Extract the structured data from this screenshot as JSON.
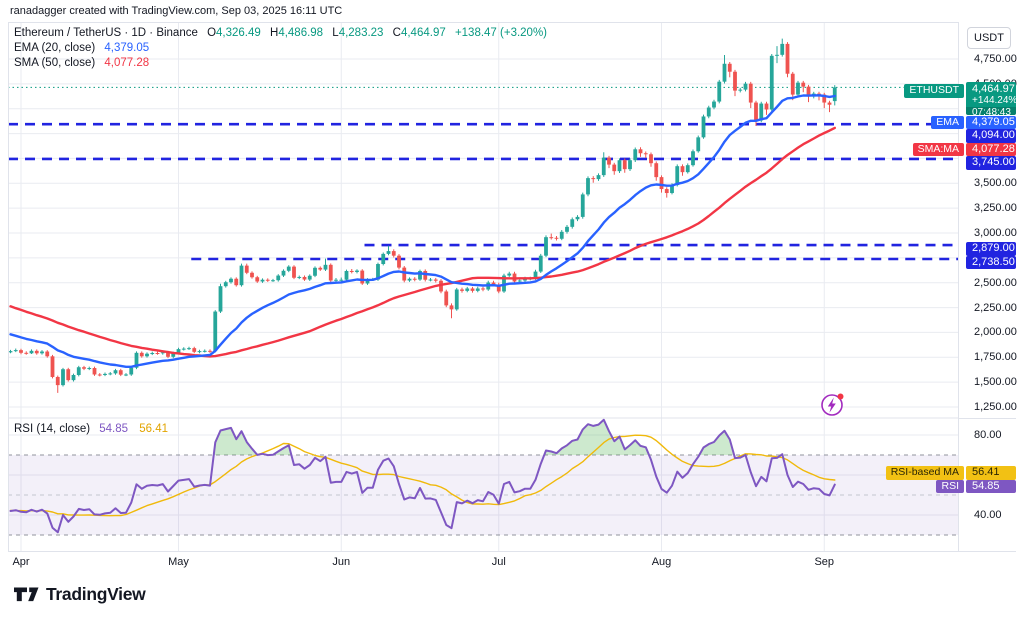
{
  "header": {
    "note": "ranadagger created with TradingView.com, Sep 03, 2025 16:11 UTC"
  },
  "legend": {
    "symbol_line": "Ethereum / TetherUS · 1D · Binance",
    "open": {
      "k": "O",
      "v": "4,326.49"
    },
    "high": {
      "k": "H",
      "v": "4,486.98"
    },
    "low": {
      "k": "L",
      "v": "4,283.23"
    },
    "close": {
      "k": "C",
      "v": "4,464.97"
    },
    "change": "+138.47 (+3.20%)",
    "ema_label": "EMA (20, close)",
    "ema_value": "4,379.05",
    "sma_label": "SMA (50, close)",
    "sma_value": "4,077.28",
    "rsi_label": "RSI (14, close)",
    "rsi_value": "54.85",
    "rsi_ma_value": "56.41"
  },
  "price_scale": {
    "currency": "USDT",
    "ticks": [
      {
        "label": "4,750.00",
        "price": 4750
      },
      {
        "label": "4,500.00",
        "price": 4500
      },
      {
        "label": "3,500.00",
        "price": 3500
      },
      {
        "label": "3,250.00",
        "price": 3250
      },
      {
        "label": "3,000.00",
        "price": 3000
      },
      {
        "label": "2,500.00",
        "price": 2500
      },
      {
        "label": "2,250.00",
        "price": 2250
      },
      {
        "label": "2,000.00",
        "price": 2000
      },
      {
        "label": "1,750.00",
        "price": 1750
      },
      {
        "label": "1,500.00",
        "price": 1500
      },
      {
        "label": "1,250.00",
        "price": 1250
      }
    ],
    "rsi_ticks": [
      {
        "label": "80.00",
        "value": 80
      },
      {
        "label": "40.00",
        "value": 40
      }
    ],
    "ethusdt_tag": "ETHUSDT",
    "ema_tag": "EMA",
    "sma_tag": "SMA:MA",
    "rsi_ma_tag": "RSI-based MA",
    "rsi_tag": "RSI"
  },
  "labels": {
    "current_price": "4,464.97",
    "change_percent": "+144.24%",
    "countdown": "07:48:43",
    "ema_price": "4,379.05",
    "sma_price": "4,077.28",
    "rsi_ma": "56.41",
    "rsi": "54.85"
  },
  "time_axis": {
    "months": [
      {
        "label": "Apr",
        "index": 2
      },
      {
        "label": "May",
        "index": 32
      },
      {
        "label": "Jun",
        "index": 63
      },
      {
        "label": "Jul",
        "index": 93
      },
      {
        "label": "Aug",
        "index": 124
      },
      {
        "label": "Sep",
        "index": 155
      }
    ]
  },
  "footer": {
    "brand": "TradingView"
  },
  "colors": {
    "up": "#26a69a",
    "down": "#ef5350",
    "ema": "#2962ff",
    "sma": "#f23645",
    "level": "#2124e0",
    "teal": "#089981",
    "rsi": "#7e57c2",
    "rsi_ma": "#f0b90b",
    "grid": "#e9ebf1",
    "band_line": "#90939d"
  },
  "chart_data": {
    "type": "candlestick",
    "title": "Ethereum / TetherUS · 1D · Binance",
    "ylim": [
      1139,
      5122
    ],
    "x_range": [
      "Mar 30, 2025",
      "Sep 03, 2025"
    ],
    "current_price": {
      "value": 4464.97,
      "label": "4,464.97",
      "change_percent": "+144.24%",
      "countdown": "07:48:43"
    },
    "levels": [
      {
        "price": 4094.0,
        "label": "4,094.00",
        "start_index": null
      },
      {
        "price": 3745.0,
        "label": "3,745.00",
        "start_index": null
      },
      {
        "price": 2879.0,
        "label": "2,879.00",
        "start_index": 68
      },
      {
        "price": 2738.5,
        "label": "2,738.50",
        "start_index": 35
      }
    ],
    "indicators": {
      "ema20": {
        "name": "EMA (20, close)",
        "last": 4379.05,
        "color": "#2962ff"
      },
      "sma50": {
        "name": "SMA (50, close)",
        "last": 4077.28,
        "color": "#f23645"
      },
      "rsi14": {
        "name": "RSI (14, close)",
        "last": 54.85,
        "ma_last": 56.41,
        "overbought": 70,
        "oversold": 30
      }
    },
    "candles": [
      [
        1800,
        1825,
        1790,
        1812
      ],
      [
        1812,
        1838,
        1802,
        1822
      ],
      [
        1822,
        1836,
        1781,
        1795
      ],
      [
        1795,
        1810,
        1776,
        1790
      ],
      [
        1790,
        1829,
        1783,
        1815
      ],
      [
        1815,
        1829,
        1776,
        1790
      ],
      [
        1790,
        1822,
        1777,
        1808
      ],
      [
        1808,
        1822,
        1746,
        1760
      ],
      [
        1760,
        1774,
        1538,
        1552
      ],
      [
        1552,
        1566,
        1392,
        1470
      ],
      [
        1470,
        1644,
        1456,
        1630
      ],
      [
        1630,
        1644,
        1506,
        1520
      ],
      [
        1520,
        1586,
        1506,
        1572
      ],
      [
        1572,
        1664,
        1558,
        1650
      ],
      [
        1650,
        1664,
        1621,
        1635
      ],
      [
        1635,
        1656,
        1621,
        1642
      ],
      [
        1642,
        1656,
        1563,
        1577
      ],
      [
        1577,
        1591,
        1558,
        1572
      ],
      [
        1572,
        1597,
        1560,
        1583
      ],
      [
        1583,
        1602,
        1569,
        1588
      ],
      [
        1588,
        1634,
        1574,
        1620
      ],
      [
        1620,
        1634,
        1561,
        1575
      ],
      [
        1575,
        1591,
        1561,
        1577
      ],
      [
        1577,
        1659,
        1563,
        1645
      ],
      [
        1645,
        1809,
        1631,
        1795
      ],
      [
        1795,
        1809,
        1746,
        1760
      ],
      [
        1760,
        1800,
        1746,
        1786
      ],
      [
        1786,
        1807,
        1772,
        1793
      ],
      [
        1793,
        1807,
        1776,
        1790
      ],
      [
        1790,
        1814,
        1776,
        1800
      ],
      [
        1800,
        1814,
        1741,
        1755
      ],
      [
        1755,
        1807,
        1741,
        1793
      ],
      [
        1793,
        1846,
        1779,
        1832
      ],
      [
        1832,
        1851,
        1818,
        1837
      ],
      [
        1837,
        1856,
        1823,
        1842
      ],
      [
        1842,
        1856,
        1791,
        1805
      ],
      [
        1805,
        1826,
        1791,
        1812
      ],
      [
        1812,
        1829,
        1798,
        1815
      ],
      [
        1815,
        1829,
        1795,
        1812
      ],
      [
        1812,
        2224,
        1798,
        2210
      ],
      [
        2210,
        2490,
        2196,
        2465
      ],
      [
        2465,
        2519,
        2451,
        2505
      ],
      [
        2505,
        2554,
        2491,
        2540
      ],
      [
        2540,
        2554,
        2461,
        2475
      ],
      [
        2475,
        2692,
        2461,
        2672
      ],
      [
        2672,
        2692,
        2586,
        2600
      ],
      [
        2600,
        2614,
        2541,
        2555
      ],
      [
        2555,
        2569,
        2498,
        2512
      ],
      [
        2512,
        2544,
        2498,
        2530
      ],
      [
        2530,
        2544,
        2508,
        2522
      ],
      [
        2522,
        2539,
        2508,
        2525
      ],
      [
        2525,
        2586,
        2511,
        2572
      ],
      [
        2572,
        2634,
        2558,
        2620
      ],
      [
        2620,
        2676,
        2606,
        2662
      ],
      [
        2662,
        2676,
        2536,
        2550
      ],
      [
        2550,
        2572,
        2536,
        2558
      ],
      [
        2558,
        2572,
        2518,
        2532
      ],
      [
        2532,
        2584,
        2518,
        2570
      ],
      [
        2570,
        2664,
        2556,
        2650
      ],
      [
        2650,
        2664,
        2618,
        2632
      ],
      [
        2632,
        2742,
        2618,
        2680
      ],
      [
        2680,
        2694,
        2506,
        2522
      ],
      [
        2522,
        2548,
        2508,
        2530
      ],
      [
        2530,
        2552,
        2512,
        2530
      ],
      [
        2530,
        2632,
        2516,
        2618
      ],
      [
        2618,
        2638,
        2594,
        2608
      ],
      [
        2608,
        2636,
        2594,
        2622
      ],
      [
        2622,
        2636,
        2478,
        2492
      ],
      [
        2492,
        2546,
        2478,
        2532
      ],
      [
        2532,
        2549,
        2518,
        2532
      ],
      [
        2532,
        2702,
        2518,
        2688
      ],
      [
        2688,
        2804,
        2674,
        2790
      ],
      [
        2790,
        2872,
        2776,
        2818
      ],
      [
        2818,
        2836,
        2754,
        2772
      ],
      [
        2772,
        2788,
        2634,
        2652
      ],
      [
        2652,
        2668,
        2504,
        2522
      ],
      [
        2522,
        2554,
        2508,
        2540
      ],
      [
        2540,
        2556,
        2514,
        2532
      ],
      [
        2532,
        2632,
        2518,
        2618
      ],
      [
        2618,
        2634,
        2512,
        2530
      ],
      [
        2530,
        2548,
        2514,
        2532
      ],
      [
        2532,
        2548,
        2502,
        2520
      ],
      [
        2520,
        2536,
        2394,
        2412
      ],
      [
        2412,
        2430,
        2254,
        2272
      ],
      [
        2272,
        2292,
        2142,
        2232
      ],
      [
        2232,
        2448,
        2218,
        2432
      ],
      [
        2432,
        2450,
        2400,
        2418
      ],
      [
        2418,
        2458,
        2404,
        2442
      ],
      [
        2442,
        2458,
        2400,
        2418
      ],
      [
        2418,
        2460,
        2404,
        2442
      ],
      [
        2442,
        2458,
        2414,
        2432
      ],
      [
        2432,
        2520,
        2418,
        2502
      ],
      [
        2502,
        2520,
        2464,
        2482
      ],
      [
        2482,
        2500,
        2394,
        2412
      ],
      [
        2412,
        2590,
        2398,
        2572
      ],
      [
        2572,
        2610,
        2558,
        2592
      ],
      [
        2592,
        2610,
        2494,
        2512
      ],
      [
        2512,
        2540,
        2498,
        2522
      ],
      [
        2522,
        2560,
        2508,
        2542
      ],
      [
        2542,
        2560,
        2524,
        2542
      ],
      [
        2542,
        2630,
        2528,
        2612
      ],
      [
        2612,
        2790,
        2598,
        2772
      ],
      [
        2772,
        2976,
        2758,
        2958
      ],
      [
        2958,
        2994,
        2934,
        2952
      ],
      [
        2952,
        2970,
        2924,
        2942
      ],
      [
        2942,
        3030,
        2928,
        3012
      ],
      [
        3012,
        3080,
        2994,
        3062
      ],
      [
        3062,
        3156,
        3044,
        3138
      ],
      [
        3138,
        3180,
        3120,
        3162
      ],
      [
        3162,
        3406,
        3144,
        3388
      ],
      [
        3388,
        3570,
        3370,
        3552
      ],
      [
        3552,
        3572,
        3506,
        3542
      ],
      [
        3542,
        3600,
        3524,
        3582
      ],
      [
        3582,
        3812,
        3564,
        3758
      ],
      [
        3758,
        3776,
        3652,
        3688
      ],
      [
        3688,
        3706,
        3586,
        3622
      ],
      [
        3622,
        3750,
        3604,
        3732
      ],
      [
        3732,
        3750,
        3606,
        3642
      ],
      [
        3642,
        3750,
        3624,
        3732
      ],
      [
        3732,
        3860,
        3714,
        3842
      ],
      [
        3842,
        3862,
        3766,
        3802
      ],
      [
        3802,
        3820,
        3756,
        3792
      ],
      [
        3792,
        3810,
        3666,
        3702
      ],
      [
        3702,
        3720,
        3526,
        3562
      ],
      [
        3562,
        3580,
        3406,
        3442
      ],
      [
        3442,
        3460,
        3356,
        3402
      ],
      [
        3402,
        3500,
        3388,
        3482
      ],
      [
        3482,
        3690,
        3468,
        3672
      ],
      [
        3672,
        3690,
        3576,
        3612
      ],
      [
        3612,
        3700,
        3598,
        3682
      ],
      [
        3682,
        3840,
        3668,
        3822
      ],
      [
        3822,
        3980,
        3808,
        3962
      ],
      [
        3962,
        4190,
        3948,
        4172
      ],
      [
        4172,
        4280,
        4154,
        4262
      ],
      [
        4262,
        4340,
        4244,
        4322
      ],
      [
        4322,
        4540,
        4304,
        4522
      ],
      [
        4522,
        4790,
        4504,
        4702
      ],
      [
        4702,
        4720,
        4566,
        4622
      ],
      [
        4622,
        4640,
        4376,
        4432
      ],
      [
        4432,
        4460,
        4414,
        4442
      ],
      [
        4442,
        4520,
        4424,
        4502
      ],
      [
        4502,
        4520,
        4256,
        4312
      ],
      [
        4312,
        4330,
        4076,
        4132
      ],
      [
        4132,
        4320,
        4114,
        4302
      ],
      [
        4302,
        4320,
        4188,
        4242
      ],
      [
        4242,
        4800,
        4224,
        4782
      ],
      [
        4782,
        4880,
        4708,
        4792
      ],
      [
        4792,
        4955,
        4774,
        4902
      ],
      [
        4902,
        4920,
        4566,
        4602
      ],
      [
        4602,
        4620,
        4336,
        4392
      ],
      [
        4392,
        4530,
        4374,
        4512
      ],
      [
        4512,
        4530,
        4416,
        4472
      ],
      [
        4472,
        4490,
        4316,
        4372
      ],
      [
        4372,
        4420,
        4354,
        4402
      ],
      [
        4402,
        4420,
        4334,
        4392
      ],
      [
        4392,
        4410,
        4256,
        4312
      ],
      [
        4312,
        4330,
        4216,
        4290
      ],
      [
        4326.49,
        4486.98,
        4283.23,
        4464.97
      ]
    ]
  }
}
